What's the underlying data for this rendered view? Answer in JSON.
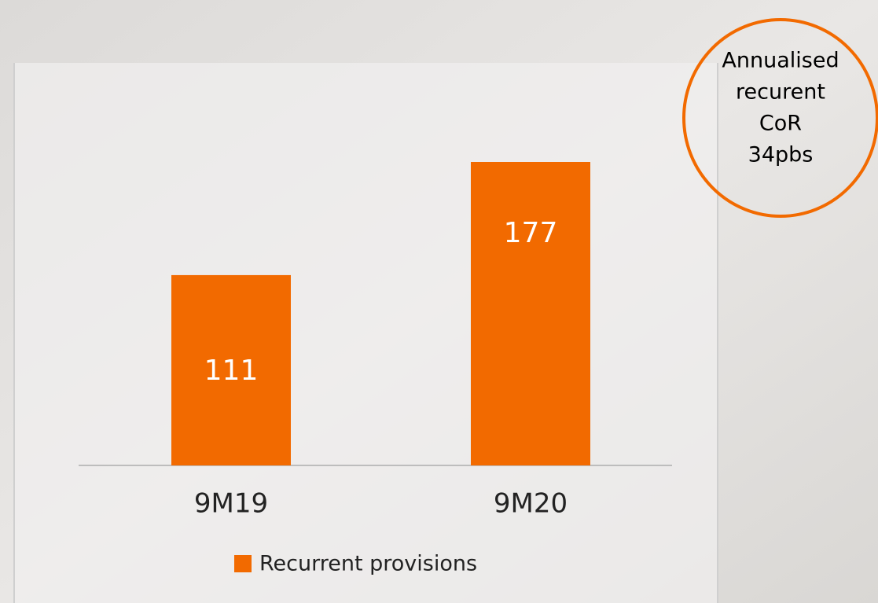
{
  "chart_data": {
    "type": "bar",
    "categories": [
      "9M19",
      "9M20"
    ],
    "series": [
      {
        "name": "Recurrent provisions",
        "color": "#f26a00",
        "values": [
          111,
          177
        ]
      }
    ],
    "annotation": [
      "Annualised",
      "recurent",
      "CoR",
      "34pbs"
    ]
  }
}
